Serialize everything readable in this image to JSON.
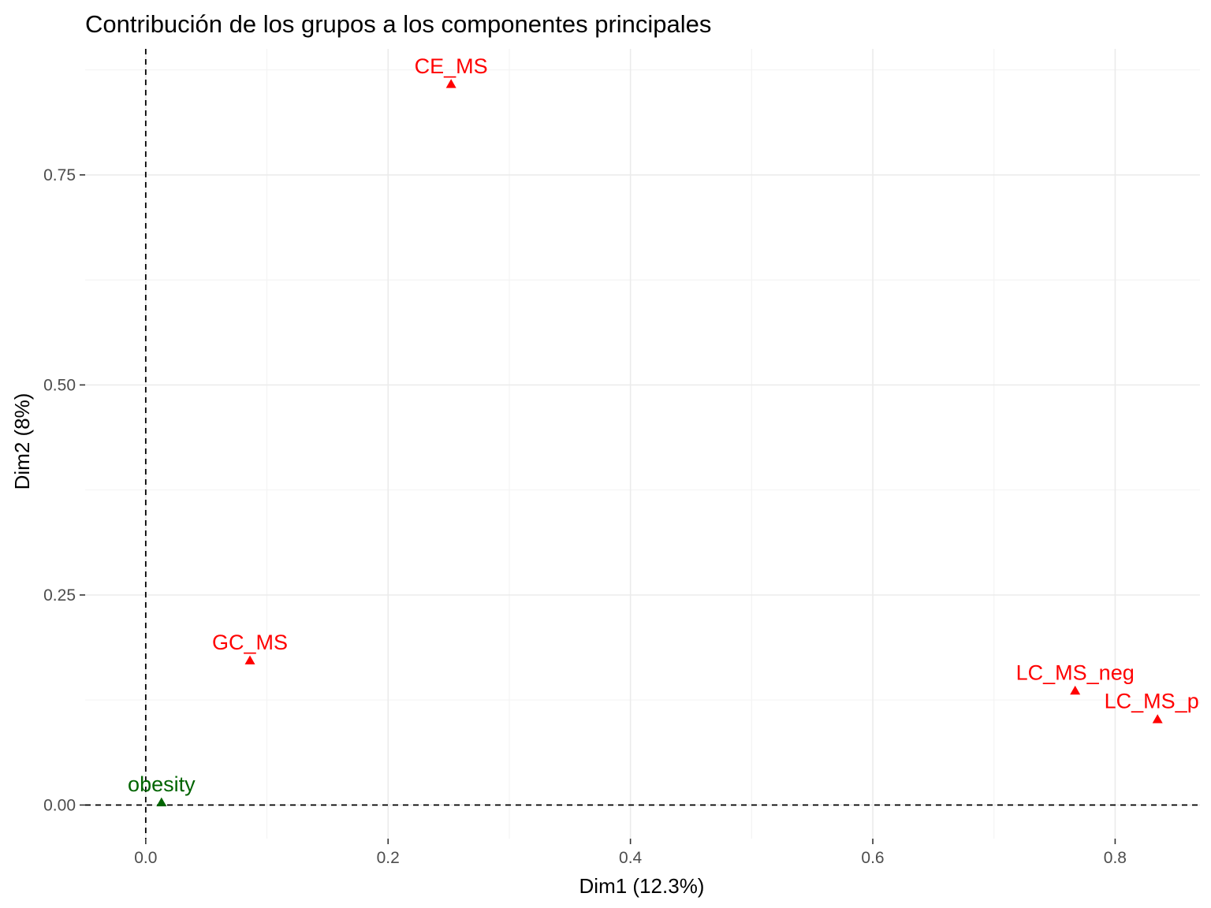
{
  "chart_data": {
    "type": "scatter",
    "title": "Contribución de los grupos a los componentes principales",
    "xlabel": "Dim1 (12.3%)",
    "ylabel": "Dim2 (8%)",
    "xlim": [
      -0.05,
      0.87
    ],
    "ylim": [
      -0.04,
      0.9
    ],
    "x_ticks": [
      0.0,
      0.2,
      0.4,
      0.6,
      0.8
    ],
    "x_tick_labels": [
      "0.0",
      "0.2",
      "0.4",
      "0.6",
      "0.8"
    ],
    "y_ticks": [
      0.0,
      0.25,
      0.5,
      0.75
    ],
    "y_tick_labels": [
      "0.00",
      "0.25",
      "0.50",
      "0.75"
    ],
    "x_minor": [
      0.1,
      0.3,
      0.5,
      0.7
    ],
    "y_minor": [
      0.125,
      0.375,
      0.625,
      0.875
    ],
    "grid": true,
    "ref_lines": {
      "x": 0,
      "y": 0
    },
    "marker": "triangle",
    "points": [
      {
        "label": "CE_MS",
        "x": 0.252,
        "y": 0.858,
        "color": "#ff0000"
      },
      {
        "label": "GC_MS",
        "x": 0.086,
        "y": 0.172,
        "color": "#ff0000"
      },
      {
        "label": "LC_MS_neg",
        "x": 0.767,
        "y": 0.136,
        "color": "#ff0000"
      },
      {
        "label": "LC_MS_po",
        "x": 0.835,
        "y": 0.102,
        "color": "#ff0000"
      },
      {
        "label": "obesity",
        "x": 0.013,
        "y": 0.003,
        "color": "#006400"
      }
    ]
  }
}
